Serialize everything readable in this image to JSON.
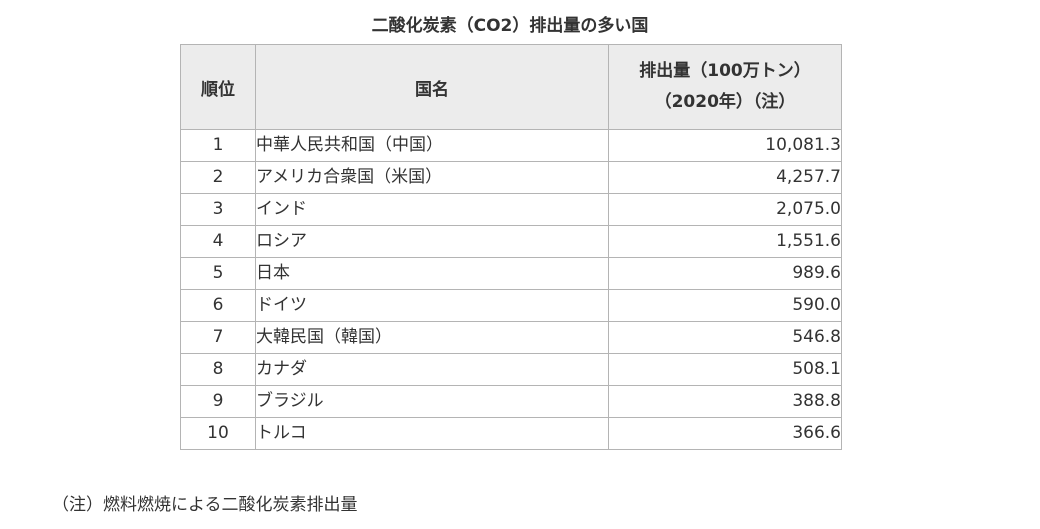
{
  "title": "二酸化炭素（CO2）排出量の多い国",
  "table": {
    "headers": {
      "rank": "順位",
      "country": "国名",
      "emissions_line1": "排出量（100万トン）",
      "emissions_line2": "（2020年）（注）"
    },
    "rows": [
      {
        "rank": "1",
        "country": "中華人民共和国（中国）",
        "value": "10,081.3"
      },
      {
        "rank": "2",
        "country": "アメリカ合衆国（米国）",
        "value": "4,257.7"
      },
      {
        "rank": "3",
        "country": "インド",
        "value": "2,075.0"
      },
      {
        "rank": "4",
        "country": "ロシア",
        "value": "1,551.6"
      },
      {
        "rank": "5",
        "country": "日本",
        "value": "989.6"
      },
      {
        "rank": "6",
        "country": "ドイツ",
        "value": "590.0"
      },
      {
        "rank": "7",
        "country": "大韓民国（韓国）",
        "value": "546.8"
      },
      {
        "rank": "8",
        "country": "カナダ",
        "value": "508.1"
      },
      {
        "rank": "9",
        "country": "ブラジル",
        "value": "388.8"
      },
      {
        "rank": "10",
        "country": "トルコ",
        "value": "366.6"
      }
    ]
  },
  "footnote": "（注）燃料燃焼による二酸化炭素排出量"
}
